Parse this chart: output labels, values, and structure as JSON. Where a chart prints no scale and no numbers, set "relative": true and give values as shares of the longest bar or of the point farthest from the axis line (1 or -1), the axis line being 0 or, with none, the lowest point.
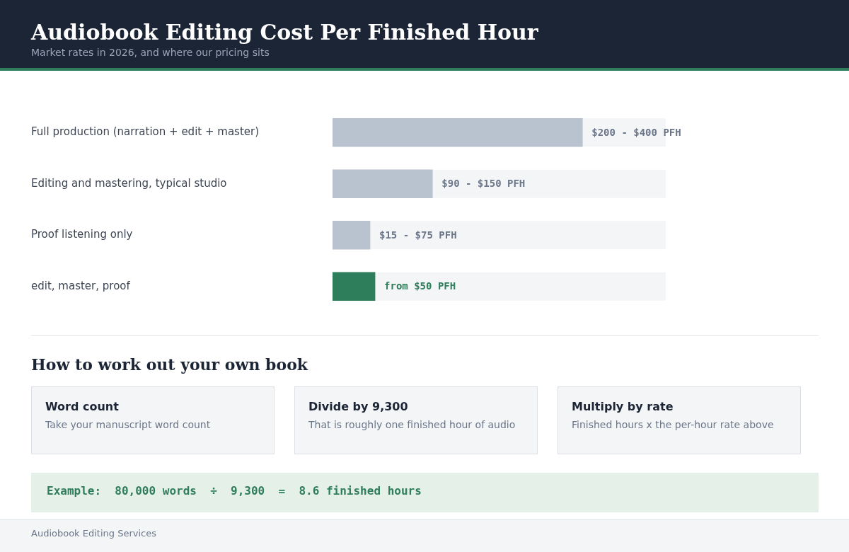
{
  "chart_data": [
    {
      "type": "bar",
      "orientation": "horizontal",
      "title": "Audiobook Editing Cost Per Finished Hour",
      "subtitle": "Market rates in 2026, and where our pricing sits",
      "categories": [
        "Full production (narration + edit + master)",
        "Editing and mastering, typical studio",
        "Proof listening only",
        "edit, master, proof"
      ],
      "values": [
        1,
        0.4,
        0.15,
        0.17
      ],
      "relative": true,
      "colors": [
        "#b9c3d0",
        "#b9c3d0",
        "#b9c3d0",
        "#2e7d5b"
      ],
      "annotations": [
        "$200 - $400 PFH",
        "$90 - $150 PFH",
        "$15 - $75 PFH",
        "from $50 PFH"
      ]
    },
    {
      "type": "other",
      "title": "How to work out your own book",
      "annotations": [
        "Word count",
        "Take your manuscript word count",
        "Divide by 9,300",
        "That is roughly one finished hour of audio",
        "Multiply by rate",
        "Finished hours x the per-hour rate above",
        "Example:  80,000 words  ÷  9,300  =  8.6 finished hours",
        "Audiobook Editing Services"
      ]
    }
  ]
}
